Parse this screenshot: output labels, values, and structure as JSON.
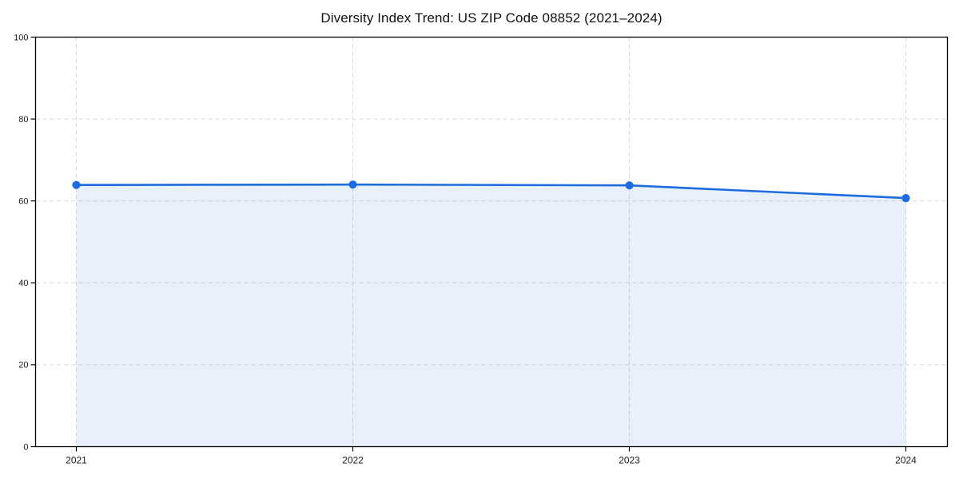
{
  "chart_data": {
    "type": "line",
    "title": "Diversity Index Trend: US ZIP Code 08852 (2021–2024)",
    "x": [
      "2021",
      "2022",
      "2023",
      "2024"
    ],
    "series": [
      {
        "name": "Diversity Index",
        "values": [
          63.9,
          64.0,
          63.8,
          60.7
        ]
      }
    ],
    "xlabel": "",
    "ylabel": "",
    "ylim": [
      0,
      100
    ],
    "yticks": [
      0,
      20,
      40,
      60,
      80,
      100
    ],
    "grid": "dashed, horizontal and vertical, light gray, drawn below data",
    "legend": "none",
    "marker": "filled circle",
    "area_fill": "under line, from first to last x",
    "line_color": "#1c6ce0",
    "fill_color": "rgba(28,108,224,0.10)",
    "grid_color": "#d9d9d9",
    "spine_color": "#000000",
    "tick_label_color": "#1a1a1a"
  }
}
